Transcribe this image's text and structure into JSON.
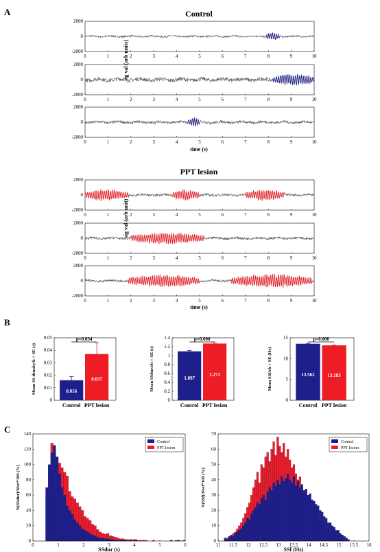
{
  "panel_labels": [
    "A",
    "B",
    "C"
  ],
  "colors": {
    "control": "#1f1f8c",
    "ppt": "#ee1c24",
    "trace": "#555555"
  },
  "chart_data": [
    {
      "type": "line",
      "group_title": "Control",
      "ylabel": "sig val (arb units)",
      "xlabel": "time (s)",
      "xlim": [
        0,
        10
      ],
      "ylim": [
        -2000,
        2000
      ],
      "xticks": [
        "0",
        "1",
        "2",
        "3",
        "4",
        "5",
        "6",
        "7",
        "8",
        "9",
        "10"
      ],
      "yticks": [
        "2000",
        "0",
        "-2000"
      ],
      "traces": [
        {
          "amp": 120,
          "highlights": [
            [
              7.9,
              8.5,
              420
            ]
          ]
        },
        {
          "amp": 260,
          "highlights": [
            [
              8.2,
              10.0,
              650
            ]
          ]
        },
        {
          "amp": 180,
          "highlights": [
            [
              4.5,
              5.0,
              520
            ]
          ]
        }
      ]
    },
    {
      "type": "line",
      "group_title": "PPT lesion",
      "ylabel": "sig val (arb unit)",
      "xlabel": "time (s)",
      "xlim": [
        0,
        10
      ],
      "ylim": [
        -2000,
        2000
      ],
      "xticks": [
        "0",
        "1",
        "2",
        "3",
        "4",
        "5",
        "6",
        "7",
        "8",
        "9",
        "10"
      ],
      "yticks": [
        "2000",
        "0",
        "-2000"
      ],
      "traces": [
        {
          "amp": 150,
          "highlights": [
            [
              0.0,
              1.9,
              650
            ],
            [
              3.8,
              5.0,
              600
            ],
            [
              7.0,
              8.7,
              650
            ]
          ]
        },
        {
          "amp": 160,
          "highlights": [
            [
              2.0,
              5.2,
              650
            ]
          ]
        },
        {
          "amp": 160,
          "highlights": [
            [
              1.9,
              5.0,
              700
            ],
            [
              6.4,
              9.9,
              750
            ]
          ]
        }
      ]
    },
    {
      "type": "bar",
      "ylabel": "Mean SS density/h + SE (s)",
      "categories": [
        "Control",
        "PPT lesion"
      ],
      "values": [
        0.016,
        0.037
      ],
      "errors": [
        0.003,
        0.009
      ],
      "value_labels": [
        "0.016",
        "0.037"
      ],
      "ylim": [
        0,
        0.05
      ],
      "yticks": [
        "0",
        "0.01",
        "0.02",
        "0.03",
        "0.04",
        "0.05"
      ],
      "pvalue": "p=0.034"
    },
    {
      "type": "bar",
      "ylabel": "Mean SSdur/rh + SE (s)",
      "categories": [
        "Control",
        "PPT lesion"
      ],
      "values": [
        1.097,
        1.271
      ],
      "errors": [
        0.02,
        0.02
      ],
      "value_labels": [
        "1.097",
        "1.271"
      ],
      "ylim": [
        0,
        1.4
      ],
      "yticks": [
        "0",
        "0.2",
        "0.4",
        "0.6",
        "0.8",
        "1",
        "1.2",
        "1.4"
      ],
      "pvalue": "p=0.000"
    },
    {
      "type": "bar",
      "ylabel": "Mean SSf/rh + SE (Hz)",
      "categories": [
        "Control",
        "PPT lesion"
      ],
      "values": [
        13.562,
        13.183
      ],
      "errors": [
        0.1,
        0.1
      ],
      "value_labels": [
        "13.562",
        "13.183"
      ],
      "ylim": [
        0,
        15
      ],
      "yticks": [
        "0",
        "5",
        "10",
        "15"
      ],
      "pvalue": "p=0.000"
    },
    {
      "type": "bar",
      "subtype": "histogram",
      "xlabel": "SSdur (s)",
      "ylabel": "N(SSdur)/Ntot*100 (%)",
      "xlim": [
        0,
        6
      ],
      "ylim": [
        0,
        140
      ],
      "xticks": [
        "0",
        "1",
        "2",
        "3",
        "4",
        "5",
        "6"
      ],
      "yticks": [
        "0",
        "20",
        "40",
        "60",
        "80",
        "100",
        "120",
        "140"
      ],
      "legend": [
        "Control",
        "PPT lesion"
      ],
      "legend_position": "top-right",
      "bin_start": 0.5,
      "bin_width": 0.1,
      "series": [
        {
          "name": "Control",
          "values": [
            70,
            100,
            115,
            125,
            110,
            88,
            70,
            60,
            46,
            40,
            35,
            28,
            24,
            20,
            16,
            14,
            12,
            10,
            8,
            7,
            5,
            4,
            4,
            3,
            3,
            2,
            2,
            1,
            1,
            1,
            1,
            1,
            0,
            1,
            0,
            1,
            0,
            0,
            0,
            0,
            0,
            0,
            0,
            0,
            0,
            0,
            0,
            0,
            0,
            1,
            0,
            0,
            1,
            0,
            0
          ]
        },
        {
          "name": "PPT lesion",
          "values": [
            60,
            98,
            128,
            120,
            110,
            102,
            96,
            90,
            85,
            65,
            58,
            55,
            50,
            45,
            40,
            32,
            30,
            27,
            22,
            20,
            15,
            12,
            10,
            9,
            10,
            7,
            6,
            5,
            4,
            3,
            3,
            2,
            2,
            2,
            2,
            2,
            1,
            1,
            1,
            1,
            0,
            0,
            1,
            0,
            0,
            0,
            0,
            0,
            0,
            0,
            0,
            1,
            0,
            0,
            1
          ]
        }
      ]
    },
    {
      "type": "bar",
      "subtype": "histogram",
      "xlabel": "SSf (Hz)",
      "ylabel": "N(SSf)/Ntot*100 (%)",
      "xlim": [
        11,
        16
      ],
      "ylim": [
        0,
        70
      ],
      "xticks": [
        "11",
        "11.5",
        "12",
        "12.5",
        "13",
        "13.5",
        "14",
        "14.5",
        "15",
        "15.5",
        "16"
      ],
      "yticks": [
        "0",
        "10",
        "20",
        "30",
        "40",
        "50",
        "60",
        "70"
      ],
      "legend": [
        "Control",
        "PPT lesion"
      ],
      "legend_position": "top-right",
      "bin_start": 11.2,
      "bin_width": 0.067,
      "series": [
        {
          "name": "Control",
          "values": [
            2,
            1,
            3,
            4,
            3,
            5,
            6,
            7,
            8,
            10,
            12,
            15,
            14,
            18,
            20,
            22,
            25,
            24,
            28,
            30,
            27,
            32,
            35,
            33,
            38,
            36,
            40,
            37,
            42,
            39,
            41,
            44,
            40,
            38,
            42,
            36,
            39,
            35,
            37,
            33,
            34,
            30,
            31,
            27,
            26,
            24,
            23,
            20,
            19,
            16,
            15,
            12,
            12,
            10,
            9,
            7,
            7,
            5,
            4,
            3,
            2,
            1
          ]
        },
        {
          "name": "PPT lesion",
          "values": [
            1,
            2,
            2,
            4,
            5,
            6,
            8,
            10,
            12,
            15,
            18,
            22,
            25,
            30,
            35,
            40,
            45,
            38,
            50,
            48,
            55,
            58,
            52,
            60,
            65,
            56,
            68,
            62,
            58,
            64,
            55,
            60,
            53,
            48,
            50,
            44,
            40,
            42,
            35,
            33,
            28,
            30,
            22,
            20,
            18,
            15,
            13,
            12,
            10,
            8,
            7,
            5,
            4,
            3,
            2,
            2,
            1,
            1,
            1,
            0,
            0,
            0
          ]
        }
      ]
    }
  ]
}
